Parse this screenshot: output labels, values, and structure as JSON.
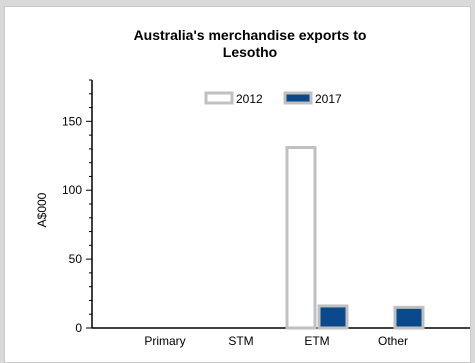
{
  "chart_data": {
    "type": "bar",
    "title_lines": [
      "Australia's merchandise exports to",
      "Lesotho"
    ],
    "ylabel": "A$000",
    "xlabel": "",
    "ylim": [
      0,
      180
    ],
    "yticks": [
      0,
      50,
      100,
      150
    ],
    "categories": [
      "Primary",
      "STM",
      "ETM",
      "Other"
    ],
    "series": [
      {
        "name": "2012",
        "values": [
          0,
          0,
          131,
          0
        ],
        "fill": "#ffffff",
        "stroke": "#c0c0c0"
      },
      {
        "name": "2017",
        "values": [
          0,
          0,
          16,
          15
        ],
        "fill": "#0a4a8c",
        "stroke": "#c0c0c0"
      }
    ],
    "legend_position": "top",
    "grid": false
  }
}
